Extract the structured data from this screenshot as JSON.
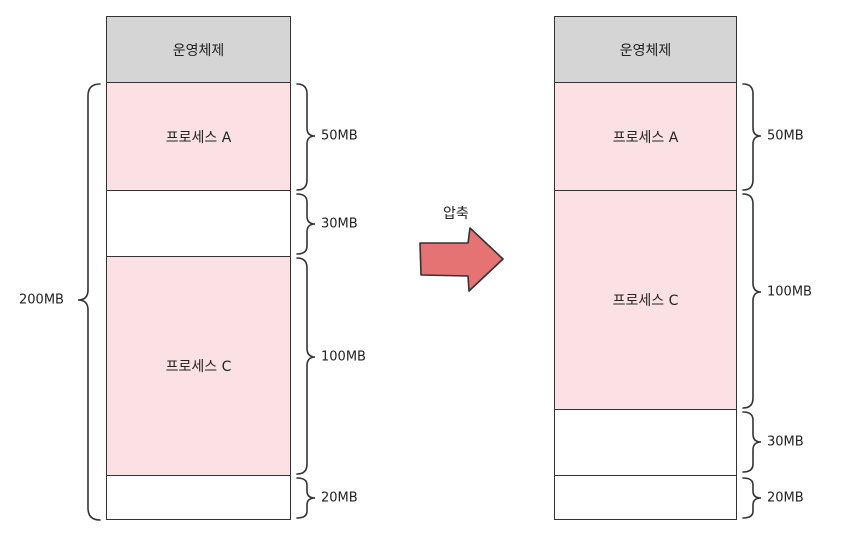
{
  "left_stack": {
    "os": "운영체제",
    "process_a": "프로세스 A",
    "process_c": "프로세스 C",
    "size_a": "50MB",
    "size_hole1": "30MB",
    "size_c": "100MB",
    "size_hole2": "20MB",
    "total": "200MB"
  },
  "right_stack": {
    "os": "운영체제",
    "process_a": "프로세스 A",
    "process_c": "프로세스 C",
    "size_a": "50MB",
    "size_c": "100MB",
    "size_hole1": "30MB",
    "size_hole2": "20MB"
  },
  "arrow": {
    "label": "압축",
    "fill": "#e57373",
    "stroke": "#333333"
  },
  "colors": {
    "os": "#d4d5d4",
    "process": "#fbe1e3",
    "free": "#ffffff"
  }
}
